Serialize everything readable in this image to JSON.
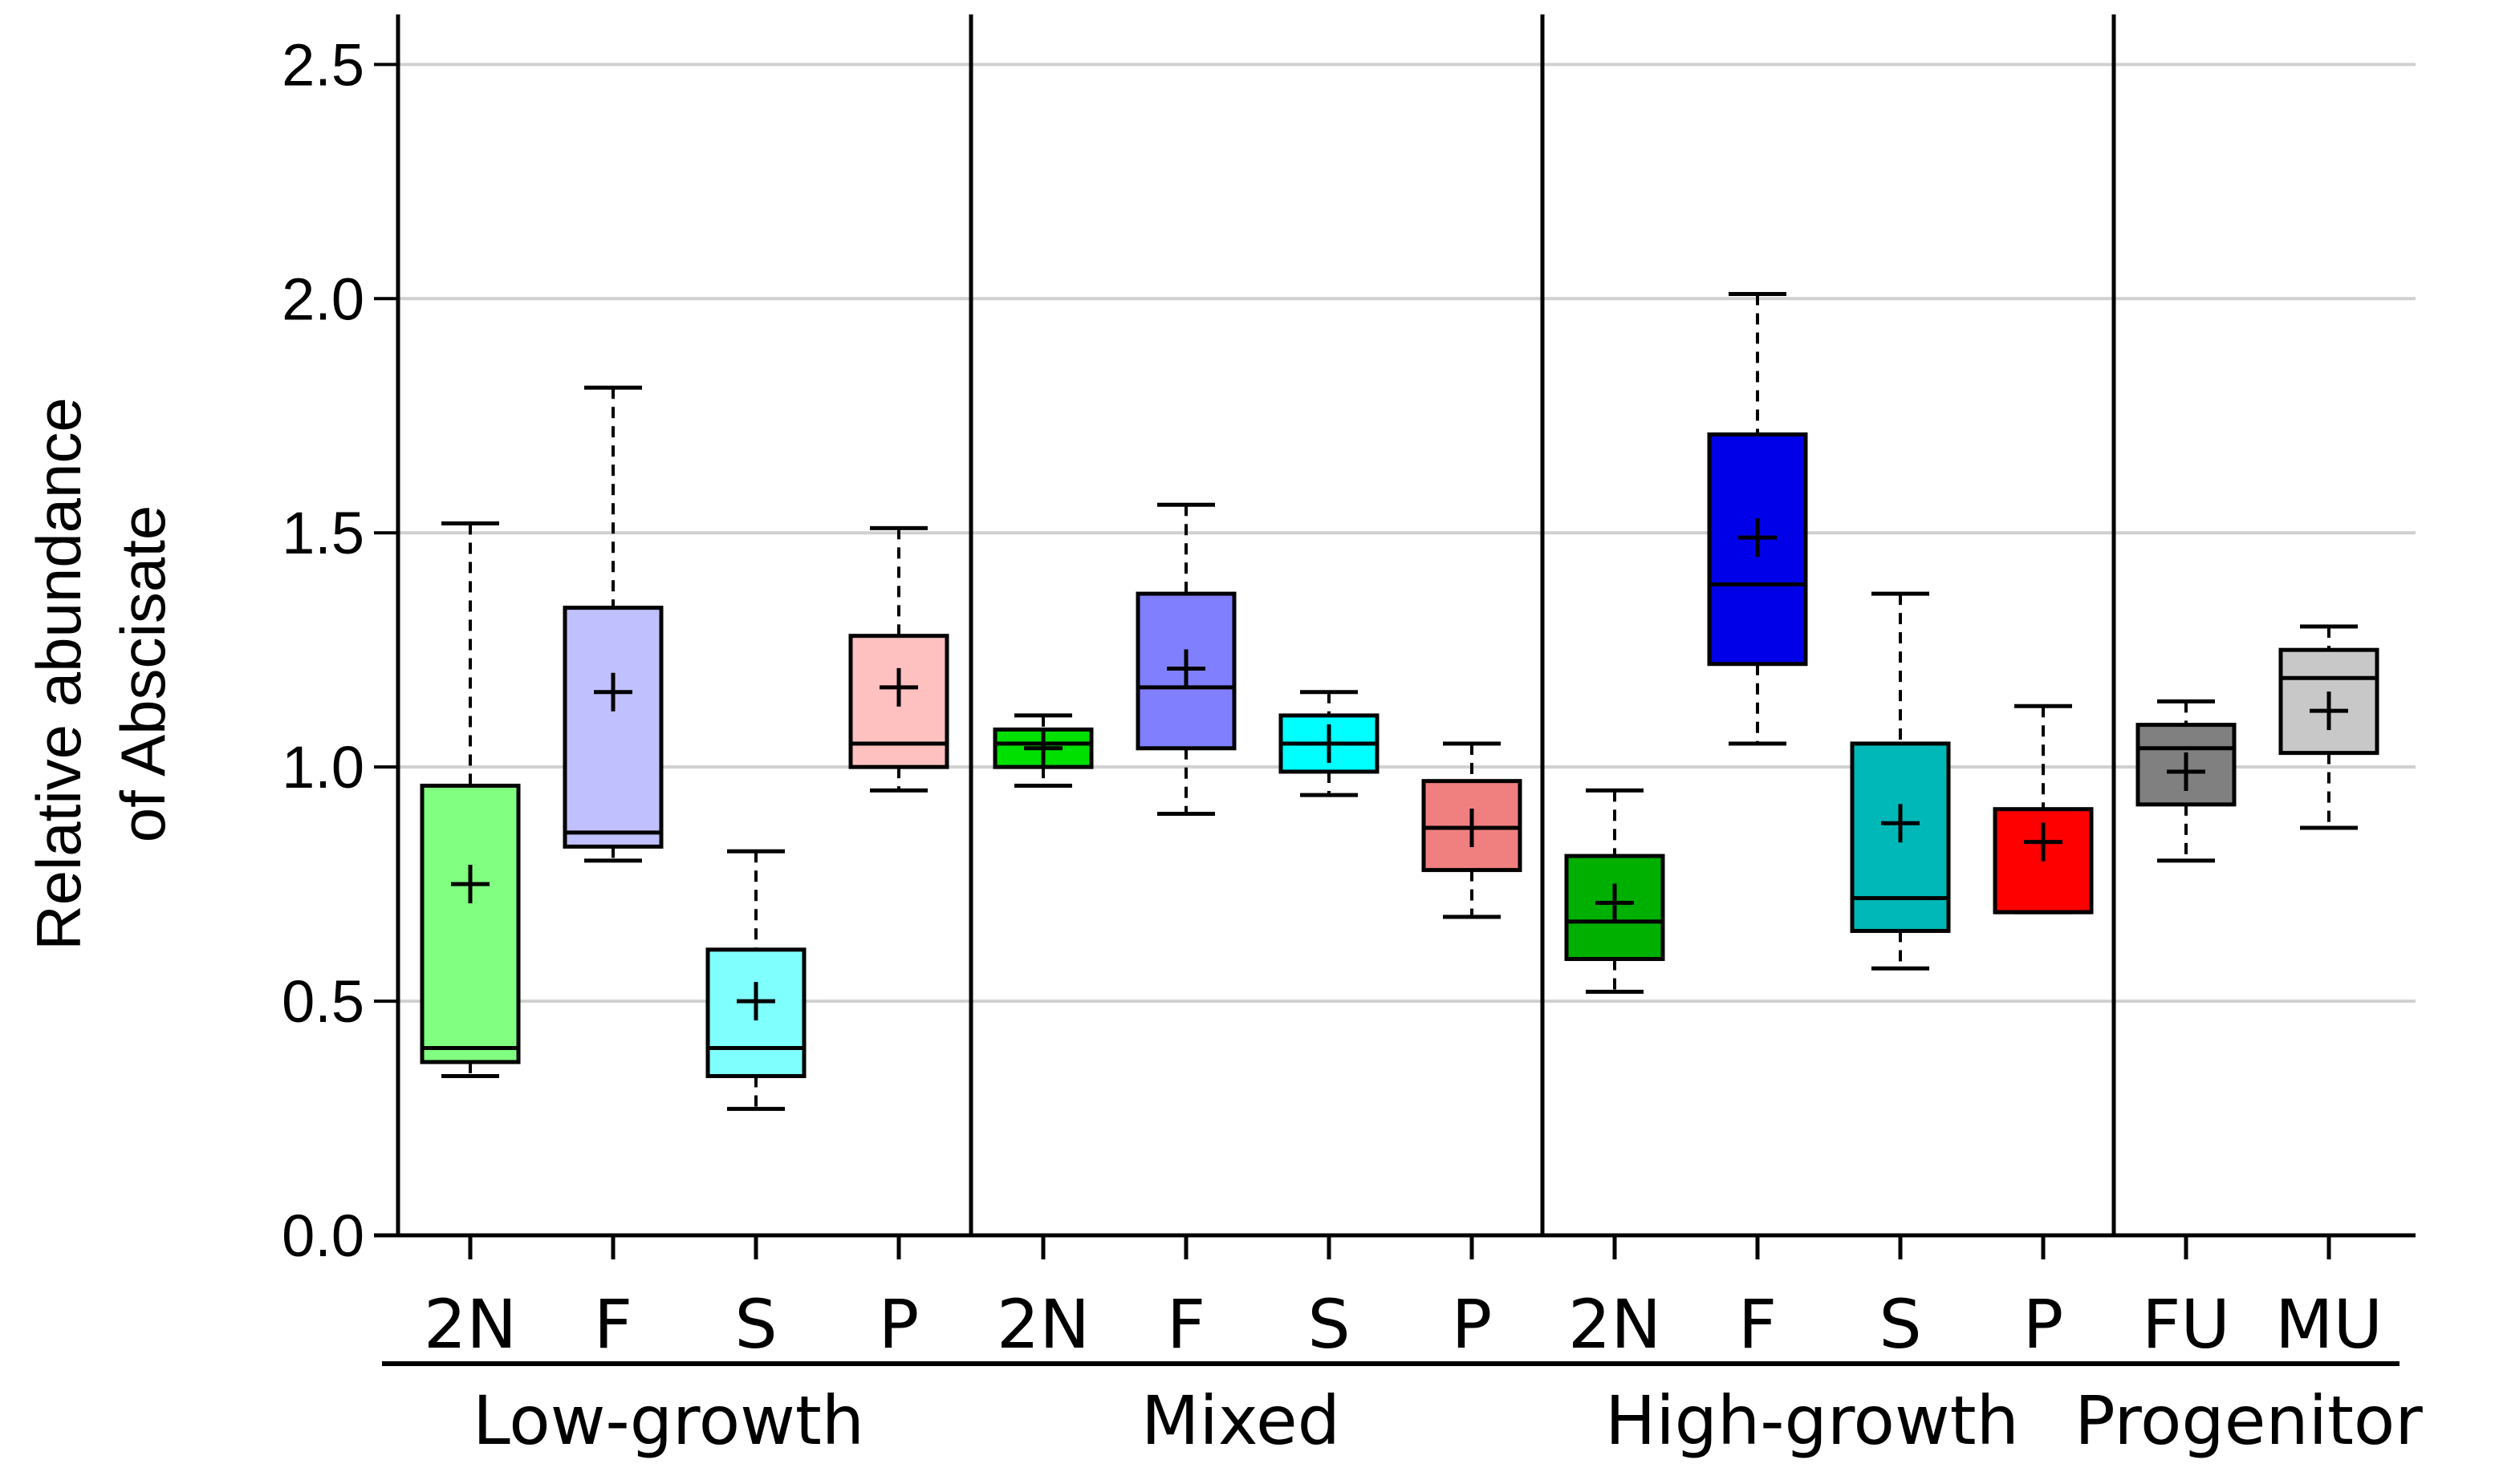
{
  "chart_data": {
    "type": "box",
    "ylabel_lines": [
      "Relative abundance",
      "of Abscisate"
    ],
    "ylim": [
      0,
      2.6
    ],
    "yticks": [
      0,
      0.5,
      1,
      1.5,
      2,
      2.5
    ],
    "ytick_labels": [
      "0.0",
      "0.5",
      "1.0",
      "1.5",
      "2.0",
      "2.5"
    ],
    "grid": true,
    "groups": [
      {
        "name": "Low-growth",
        "boxes": [
          {
            "label": "2N",
            "color": "#80ff80",
            "min": 0.34,
            "q1": 0.37,
            "median": 0.4,
            "q3": 0.96,
            "max": 1.52,
            "mean": 0.75
          },
          {
            "label": "F",
            "color": "#c0c0ff",
            "min": 0.8,
            "q1": 0.83,
            "median": 0.86,
            "q3": 1.34,
            "max": 1.81,
            "mean": 1.16
          },
          {
            "label": "S",
            "color": "#80ffff",
            "min": 0.27,
            "q1": 0.34,
            "median": 0.4,
            "q3": 0.61,
            "max": 0.82,
            "mean": 0.5
          },
          {
            "label": "P",
            "color": "#ffc0c0",
            "min": 0.95,
            "q1": 1.0,
            "median": 1.05,
            "q3": 1.28,
            "max": 1.51,
            "mean": 1.17
          }
        ]
      },
      {
        "name": "Mixed",
        "boxes": [
          {
            "label": "2N",
            "color": "#00e000",
            "min": 0.96,
            "q1": 1.0,
            "median": 1.05,
            "q3": 1.08,
            "max": 1.11,
            "mean": 1.04
          },
          {
            "label": "F",
            "color": "#8080ff",
            "min": 0.9,
            "q1": 1.04,
            "median": 1.17,
            "q3": 1.37,
            "max": 1.56,
            "mean": 1.21
          },
          {
            "label": "S",
            "color": "#00ffff",
            "min": 0.94,
            "q1": 0.99,
            "median": 1.05,
            "q3": 1.11,
            "max": 1.16,
            "mean": 1.05
          },
          {
            "label": "P",
            "color": "#f08080",
            "min": 0.68,
            "q1": 0.78,
            "median": 0.87,
            "q3": 0.97,
            "max": 1.05,
            "mean": 0.87
          }
        ]
      },
      {
        "name": "High-growth",
        "boxes": [
          {
            "label": "2N",
            "color": "#00b000",
            "min": 0.52,
            "q1": 0.59,
            "median": 0.67,
            "q3": 0.81,
            "max": 0.95,
            "mean": 0.71
          },
          {
            "label": "F",
            "color": "#0000e8",
            "min": 1.05,
            "q1": 1.22,
            "median": 1.39,
            "q3": 1.71,
            "max": 2.01,
            "mean": 1.49
          },
          {
            "label": "S",
            "color": "#00b8b8",
            "min": 0.57,
            "q1": 0.65,
            "median": 0.72,
            "q3": 1.05,
            "max": 1.37,
            "mean": 0.88
          },
          {
            "label": "P",
            "color": "#ff0000",
            "min": 0.69,
            "q1": 0.69,
            "median": 0.69,
            "q3": 0.91,
            "max": 1.13,
            "mean": 0.84
          }
        ]
      },
      {
        "name": "Progenitor",
        "boxes": [
          {
            "label": "FU",
            "color": "#808080",
            "min": 0.8,
            "q1": 0.92,
            "median": 1.04,
            "q3": 1.09,
            "max": 1.14,
            "mean": 0.99
          },
          {
            "label": "MU",
            "color": "#c8c8c8",
            "min": 0.87,
            "q1": 1.03,
            "median": 1.19,
            "q3": 1.25,
            "max": 1.3,
            "mean": 1.12
          }
        ]
      }
    ]
  }
}
